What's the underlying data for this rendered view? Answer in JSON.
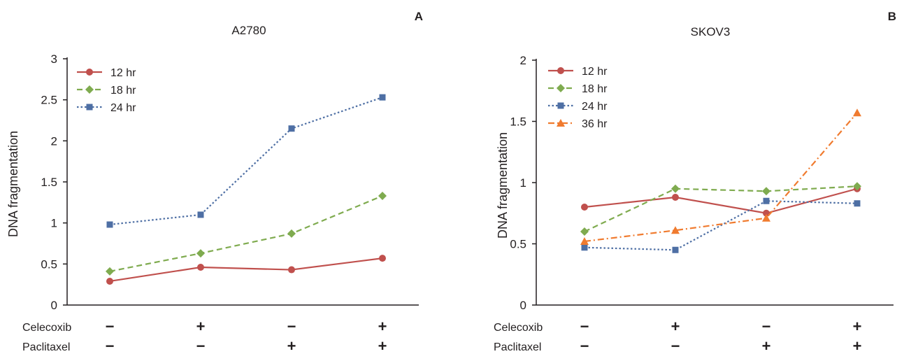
{
  "chart_data": [
    {
      "type": "line",
      "panel": "A",
      "title": "A2780",
      "ylabel": "DNA fragmentation",
      "xlabel": "",
      "ylim": [
        0,
        3
      ],
      "yticks": [
        "0",
        "0.5",
        "1",
        "1.5",
        "2",
        "2.5",
        "3"
      ],
      "categories": [
        "1",
        "2",
        "3",
        "4"
      ],
      "treatments": [
        {
          "name": "Celecoxib",
          "signs": [
            "−",
            "+",
            "−",
            "+"
          ]
        },
        {
          "name": "Paclitaxel",
          "signs": [
            "−",
            "−",
            "+",
            "+"
          ]
        }
      ],
      "legend_position": "top-left",
      "grid": false,
      "series": [
        {
          "name": "12 hr",
          "values": [
            0.29,
            0.46,
            0.43,
            0.57
          ],
          "color": "#c0504d",
          "dash": "solid",
          "marker": "circle"
        },
        {
          "name": "18 hr",
          "values": [
            0.41,
            0.63,
            0.87,
            1.33
          ],
          "color": "#7fab4f",
          "dash": "dashed",
          "marker": "diamond"
        },
        {
          "name": "24 hr",
          "values": [
            0.98,
            1.1,
            2.15,
            2.53
          ],
          "color": "#4e6fa4",
          "dash": "dotted",
          "marker": "square"
        }
      ]
    },
    {
      "type": "line",
      "panel": "B",
      "title": "SKOV3",
      "ylabel": "DNA fragmentation",
      "xlabel": "",
      "ylim": [
        0,
        2
      ],
      "yticks": [
        "0",
        "0.5",
        "1",
        "1.5",
        "2"
      ],
      "categories": [
        "1",
        "2",
        "3",
        "4"
      ],
      "treatments": [
        {
          "name": "Celecoxib",
          "signs": [
            "−",
            "+",
            "−",
            "+"
          ]
        },
        {
          "name": "Paclitaxel",
          "signs": [
            "−",
            "−",
            "+",
            "+"
          ]
        }
      ],
      "legend_position": "top-left",
      "grid": false,
      "series": [
        {
          "name": "12 hr",
          "values": [
            0.8,
            0.88,
            0.75,
            0.95
          ],
          "color": "#c0504d",
          "dash": "solid",
          "marker": "circle"
        },
        {
          "name": "18 hr",
          "values": [
            0.6,
            0.95,
            0.93,
            0.97
          ],
          "color": "#7fab4f",
          "dash": "dashed",
          "marker": "diamond"
        },
        {
          "name": "24 hr",
          "values": [
            0.47,
            0.45,
            0.85,
            0.83
          ],
          "color": "#4e6fa4",
          "dash": "dotted",
          "marker": "square"
        },
        {
          "name": "36 hr",
          "values": [
            0.52,
            0.61,
            0.71,
            1.57
          ],
          "color": "#f07b2f",
          "dash": "dashdot",
          "marker": "triangle"
        }
      ]
    }
  ]
}
